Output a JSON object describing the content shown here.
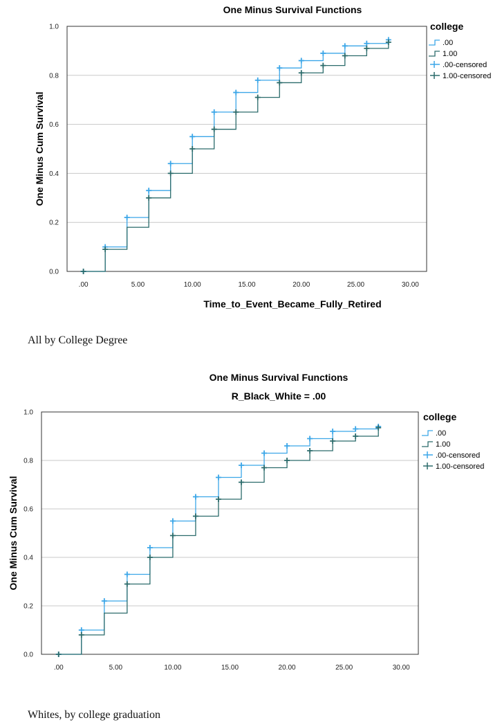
{
  "colors": {
    "series0": "#3ba6e8",
    "series1": "#2b6b6b",
    "grid": "#c8c8c8",
    "axis": "#333333"
  },
  "captions": [
    "All by College Degree",
    "Whites, by college graduation"
  ],
  "chart_data": [
    {
      "type": "line",
      "step": true,
      "title": "One Minus Survival Functions",
      "subtitle": "",
      "xlabel": "Time_to_Event_Became_Fully_Retired",
      "ylabel": "One Minus Cum Survival",
      "xlim": [
        -1.5,
        31.5
      ],
      "ylim": [
        0,
        1.0
      ],
      "xticks": [
        0,
        5,
        10,
        15,
        20,
        25,
        30
      ],
      "xtick_labels": [
        ".00",
        "5.00",
        "10.00",
        "15.00",
        "20.00",
        "25.00",
        "30.00"
      ],
      "yticks": [
        0,
        0.2,
        0.4,
        0.6,
        0.8,
        1.0
      ],
      "ytick_labels": [
        "0.0",
        "0.2",
        "0.4",
        "0.6",
        "0.8",
        "1.0"
      ],
      "grid": true,
      "legend": {
        "title": "college",
        "position": "right",
        "labels": [
          ".00",
          "1.00",
          ".00-censored",
          "1.00-censored"
        ]
      },
      "series": [
        {
          "name": ".00",
          "x": [
            0,
            2,
            4,
            6,
            8,
            10,
            12,
            14,
            16,
            18,
            20,
            22,
            24,
            26,
            28
          ],
          "y": [
            0,
            0.1,
            0.22,
            0.33,
            0.44,
            0.55,
            0.65,
            0.73,
            0.78,
            0.83,
            0.86,
            0.89,
            0.92,
            0.93,
            0.945
          ]
        },
        {
          "name": "1.00",
          "x": [
            0,
            2,
            4,
            6,
            8,
            10,
            12,
            14,
            16,
            18,
            20,
            22,
            24,
            26,
            28
          ],
          "y": [
            0,
            0.09,
            0.18,
            0.3,
            0.4,
            0.5,
            0.58,
            0.65,
            0.71,
            0.77,
            0.81,
            0.84,
            0.88,
            0.91,
            0.935
          ]
        }
      ],
      "censored": [
        {
          "name": ".00-censored",
          "x": [
            0,
            2,
            4,
            6,
            8,
            10,
            12,
            14,
            16,
            18,
            20,
            22,
            24,
            26,
            28
          ],
          "y": [
            0,
            0.1,
            0.22,
            0.33,
            0.44,
            0.55,
            0.65,
            0.73,
            0.78,
            0.83,
            0.86,
            0.89,
            0.92,
            0.93,
            0.945
          ]
        },
        {
          "name": "1.00-censored",
          "x": [
            0,
            2,
            6,
            8,
            10,
            12,
            14,
            16,
            18,
            20,
            22,
            24,
            26,
            28
          ],
          "y": [
            0,
            0.09,
            0.3,
            0.4,
            0.5,
            0.58,
            0.65,
            0.71,
            0.77,
            0.81,
            0.84,
            0.88,
            0.91,
            0.935
          ]
        }
      ]
    },
    {
      "type": "line",
      "step": true,
      "title": "One Minus Survival Functions",
      "subtitle": "R_Black_White = .00",
      "xlabel": "Time_to_Event_Became_Fully_Retired",
      "ylabel": "One Minus Cum Survival",
      "xlim": [
        -1.5,
        31.5
      ],
      "ylim": [
        0,
        1.0
      ],
      "xticks": [
        0,
        5,
        10,
        15,
        20,
        25,
        30
      ],
      "xtick_labels": [
        ".00",
        "5.00",
        "10.00",
        "15.00",
        "20.00",
        "25.00",
        "30.00"
      ],
      "yticks": [
        0,
        0.2,
        0.4,
        0.6,
        0.8,
        1.0
      ],
      "ytick_labels": [
        "0.0",
        "0.2",
        "0.4",
        "0.6",
        "0.8",
        "1.0"
      ],
      "grid": true,
      "legend": {
        "title": "college",
        "position": "right",
        "labels": [
          ".00",
          "1.00",
          ".00-censored",
          "1.00-censored"
        ]
      },
      "series": [
        {
          "name": ".00",
          "x": [
            0,
            2,
            4,
            6,
            8,
            10,
            12,
            14,
            16,
            18,
            20,
            22,
            24,
            26,
            28
          ],
          "y": [
            0,
            0.1,
            0.22,
            0.33,
            0.44,
            0.55,
            0.65,
            0.73,
            0.78,
            0.83,
            0.86,
            0.89,
            0.92,
            0.93,
            0.94
          ]
        },
        {
          "name": "1.00",
          "x": [
            0,
            2,
            4,
            6,
            8,
            10,
            12,
            14,
            16,
            18,
            20,
            22,
            24,
            26,
            28
          ],
          "y": [
            0,
            0.08,
            0.17,
            0.29,
            0.4,
            0.49,
            0.57,
            0.64,
            0.71,
            0.77,
            0.8,
            0.84,
            0.88,
            0.9,
            0.935
          ]
        }
      ],
      "censored": [
        {
          "name": ".00-censored",
          "x": [
            0,
            2,
            4,
            6,
            8,
            10,
            12,
            14,
            16,
            18,
            20,
            22,
            24,
            26,
            28
          ],
          "y": [
            0,
            0.1,
            0.22,
            0.33,
            0.44,
            0.55,
            0.65,
            0.73,
            0.78,
            0.83,
            0.86,
            0.89,
            0.92,
            0.93,
            0.94
          ]
        },
        {
          "name": "1.00-censored",
          "x": [
            0,
            2,
            6,
            8,
            10,
            12,
            14,
            16,
            18,
            20,
            22,
            24,
            26,
            28
          ],
          "y": [
            0,
            0.08,
            0.29,
            0.4,
            0.49,
            0.57,
            0.64,
            0.71,
            0.77,
            0.8,
            0.84,
            0.88,
            0.9,
            0.935
          ]
        }
      ]
    }
  ]
}
